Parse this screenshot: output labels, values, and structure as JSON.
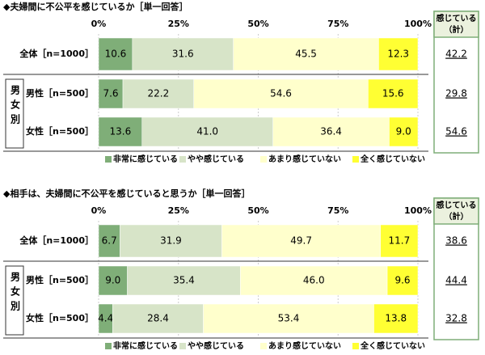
{
  "chart_data": [
    {
      "type": "bar",
      "stacked": true,
      "orientation": "horizontal",
      "title": "◆夫婦間に不公平を感じているか［単一回答］",
      "categories": [
        "全体［n=1000］",
        "男性［n=500］",
        "女性［n=500］"
      ],
      "group_label": "男女別",
      "xlim": [
        0,
        100
      ],
      "xticks": [
        {
          "value": 0,
          "label": "0%"
        },
        {
          "value": 25,
          "label": "25%"
        },
        {
          "value": 50,
          "label": "50%"
        },
        {
          "value": 75,
          "label": "75%"
        },
        {
          "value": 100,
          "label": "100%"
        }
      ],
      "grid": true,
      "series": [
        {
          "name": "非常に感じている",
          "color": "#7fae78",
          "values": [
            10.6,
            7.6,
            13.6
          ],
          "value_labels": [
            "10.6",
            "7.6",
            "13.6"
          ]
        },
        {
          "name": "やや感じている",
          "color": "#d7e4c8",
          "values": [
            31.6,
            22.2,
            41.0
          ],
          "value_labels": [
            "31.6",
            "22.2",
            "41.0"
          ]
        },
        {
          "name": "あまり感じていない",
          "color": "#ffffcc",
          "values": [
            45.5,
            54.6,
            36.4
          ],
          "value_labels": [
            "45.5",
            "54.6",
            "36.4"
          ]
        },
        {
          "name": "全く感じていない",
          "color": "#ffff33",
          "values": [
            12.3,
            15.6,
            9.0
          ],
          "value_labels": [
            "12.3",
            "15.6",
            "9.0"
          ]
        }
      ],
      "summary_label": [
        "感じている",
        "（計）"
      ],
      "summary_values": [
        42.2,
        29.8,
        54.6
      ]
    },
    {
      "type": "bar",
      "stacked": true,
      "orientation": "horizontal",
      "title": "◆相手は、夫婦間に不公平を感じていると思うか［単一回答］",
      "categories": [
        "全体［n=1000］",
        "男性［n=500］",
        "女性［n=500］"
      ],
      "group_label": "男女別",
      "xlim": [
        0,
        100
      ],
      "xticks": [
        {
          "value": 0,
          "label": "0%"
        },
        {
          "value": 25,
          "label": "25%"
        },
        {
          "value": 50,
          "label": "50%"
        },
        {
          "value": 75,
          "label": "75%"
        },
        {
          "value": 100,
          "label": "100%"
        }
      ],
      "grid": true,
      "series": [
        {
          "name": "非常に感じている",
          "color": "#7fae78",
          "values": [
            6.7,
            9.0,
            4.4
          ],
          "value_labels": [
            "6.7",
            "9.0",
            "4.4"
          ]
        },
        {
          "name": "やや感じている",
          "color": "#d7e4c8",
          "values": [
            31.9,
            35.4,
            28.4
          ],
          "value_labels": [
            "31.9",
            "35.4",
            "28.4"
          ]
        },
        {
          "name": "あまり感じていない",
          "color": "#ffffcc",
          "values": [
            49.7,
            46.0,
            53.4
          ],
          "value_labels": [
            "49.7",
            "46.0",
            "53.4"
          ]
        },
        {
          "name": "全く感じていない",
          "color": "#ffff33",
          "values": [
            11.7,
            9.6,
            13.8
          ],
          "value_labels": [
            "11.7",
            "9.6",
            "13.8"
          ]
        }
      ],
      "summary_label": [
        "感じている",
        "（計）"
      ],
      "summary_values": [
        38.6,
        44.4,
        32.8
      ]
    }
  ]
}
